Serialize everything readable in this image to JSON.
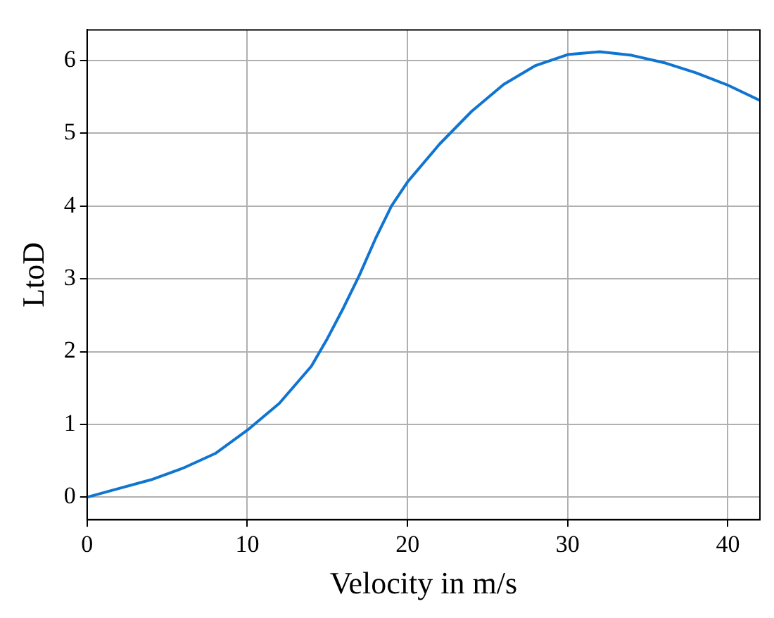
{
  "chart_data": {
    "type": "line",
    "xlabel": "Velocity in m/s",
    "ylabel": "LtoD",
    "x": [
      0,
      2,
      4,
      6,
      8,
      10,
      12,
      14,
      15,
      16,
      17,
      18,
      19,
      20,
      22,
      24,
      26,
      28,
      30,
      32,
      34,
      36,
      38,
      40,
      42
    ],
    "series": [
      {
        "color": "#1075d0",
        "values": [
          0,
          0.12,
          0.24,
          0.4,
          0.6,
          0.92,
          1.29,
          1.8,
          2.18,
          2.6,
          3.05,
          3.55,
          4.0,
          4.33,
          4.85,
          5.3,
          5.67,
          5.93,
          6.08,
          6.12,
          6.07,
          5.97,
          5.83,
          5.66,
          5.45
        ]
      }
    ],
    "xlim": [
      0,
      42
    ],
    "ylim": [
      -0.31,
      6.42
    ],
    "xticks": [
      0,
      10,
      20,
      30,
      40
    ],
    "yticks": [
      0,
      1,
      2,
      3,
      4,
      5,
      6
    ],
    "grid": true,
    "legend": false,
    "marker": "none",
    "line_style": "solid"
  }
}
